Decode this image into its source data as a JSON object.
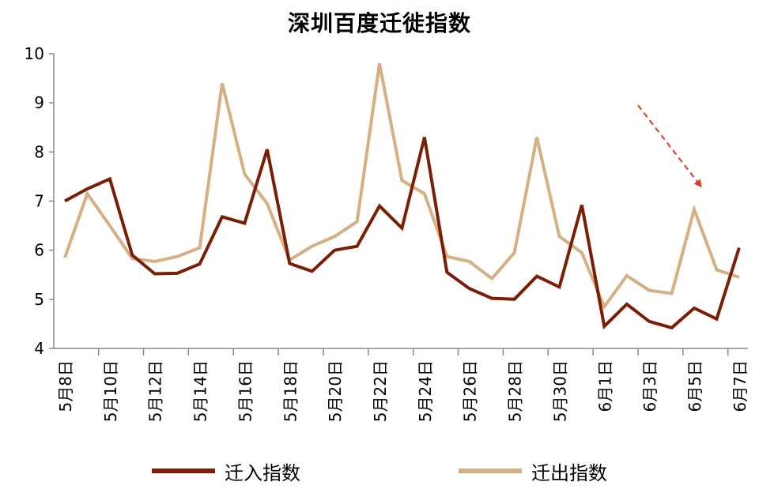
{
  "chart_data": {
    "type": "line",
    "title": "深圳百度迁徙指数",
    "xlabel": "",
    "ylabel": "",
    "ylim": [
      4,
      10
    ],
    "yticks": [
      4,
      5,
      6,
      7,
      8,
      9,
      10
    ],
    "x": [
      "5月8日",
      "5月9日",
      "5月10日",
      "5月11日",
      "5月12日",
      "5月13日",
      "5月14日",
      "5月15日",
      "5月16日",
      "5月17日",
      "5月18日",
      "5月19日",
      "5月20日",
      "5月21日",
      "5月22日",
      "5月23日",
      "5月24日",
      "5月25日",
      "5月26日",
      "5月27日",
      "5月28日",
      "5月29日",
      "5月30日",
      "5月31日",
      "6月1日",
      "6月2日",
      "6月3日",
      "6月4日",
      "6月5日",
      "6月6日",
      "6月7日"
    ],
    "x_tick_labels_shown": [
      "5月8日",
      "5月10日",
      "5月12日",
      "5月14日",
      "5月16日",
      "5月18日",
      "5月20日",
      "5月22日",
      "5月24日",
      "5月26日",
      "5月28日",
      "5月30日",
      "6月1日",
      "6月3日",
      "6月5日",
      "6月7日"
    ],
    "series": [
      {
        "name": "迁入指数",
        "color": "#7a1f05",
        "values": [
          7.0,
          7.25,
          7.45,
          5.9,
          5.52,
          5.53,
          5.72,
          6.68,
          6.55,
          8.05,
          5.73,
          5.57,
          6.0,
          6.08,
          6.9,
          6.45,
          8.3,
          5.55,
          5.22,
          5.02,
          5.0,
          5.47,
          5.25,
          6.92,
          4.45,
          4.9,
          4.55,
          4.42,
          4.82,
          4.6,
          6.05
        ]
      },
      {
        "name": "迁出指数",
        "color": "#d4b083",
        "values": [
          5.85,
          7.15,
          6.5,
          5.83,
          5.77,
          5.87,
          6.05,
          9.4,
          7.55,
          6.95,
          5.8,
          6.08,
          6.28,
          6.58,
          9.8,
          7.42,
          7.15,
          5.87,
          5.77,
          5.42,
          5.95,
          8.3,
          6.28,
          5.95,
          4.85,
          5.48,
          5.18,
          5.12,
          6.83,
          5.6,
          5.45
        ]
      }
    ],
    "annotation": {
      "type": "dashed-arrow",
      "color": "#e03a1e",
      "from_index": 25.5,
      "from_y": 8.95,
      "to_index": 28.3,
      "to_y": 7.3
    }
  }
}
